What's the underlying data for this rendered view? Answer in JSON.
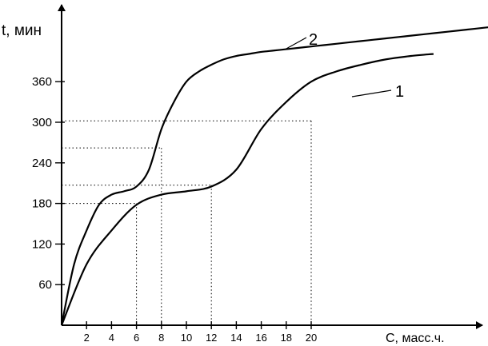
{
  "chart_data": {
    "type": "line",
    "ylabel": "t, мин",
    "xlabel": "С, масс.ч.",
    "x_ticks": [
      2,
      4,
      6,
      8,
      10,
      12,
      14,
      16,
      18,
      20
    ],
    "y_ticks": [
      60,
      120,
      180,
      240,
      300,
      360
    ],
    "xlim": [
      0,
      34
    ],
    "ylim": [
      0,
      470
    ],
    "grid": false,
    "series": [
      {
        "name": "1",
        "x": [
          0,
          2,
          4,
          6,
          8,
          10,
          12,
          14,
          16,
          18,
          20,
          22,
          24,
          26,
          28,
          29.8
        ],
        "y": [
          0,
          90,
          140,
          178,
          193,
          198,
          205,
          230,
          290,
          330,
          360,
          375,
          385,
          393,
          398,
          401
        ]
      },
      {
        "name": "2",
        "x": [
          0,
          1,
          2,
          3,
          4,
          5,
          6,
          7,
          8,
          9,
          10,
          11,
          12,
          13,
          14,
          15,
          16,
          17,
          18,
          19,
          20,
          21,
          22,
          23,
          24,
          25,
          26,
          27,
          28,
          29,
          30,
          31,
          32,
          33,
          34,
          35
        ],
        "y": [
          0,
          90,
          140,
          178,
          193,
          198,
          205,
          230,
          290,
          330,
          360,
          375,
          385,
          393,
          398,
          401,
          404,
          406,
          408,
          410,
          412,
          414,
          416,
          418,
          420,
          422,
          424,
          426,
          428,
          430,
          432,
          434,
          436,
          438,
          440,
          442
        ]
      }
    ],
    "reference_lines": [
      {
        "x": 6,
        "y": 180
      },
      {
        "x": 8,
        "y": 262
      },
      {
        "x": 12,
        "y": 207
      },
      {
        "x": 20,
        "y": 302
      }
    ]
  }
}
